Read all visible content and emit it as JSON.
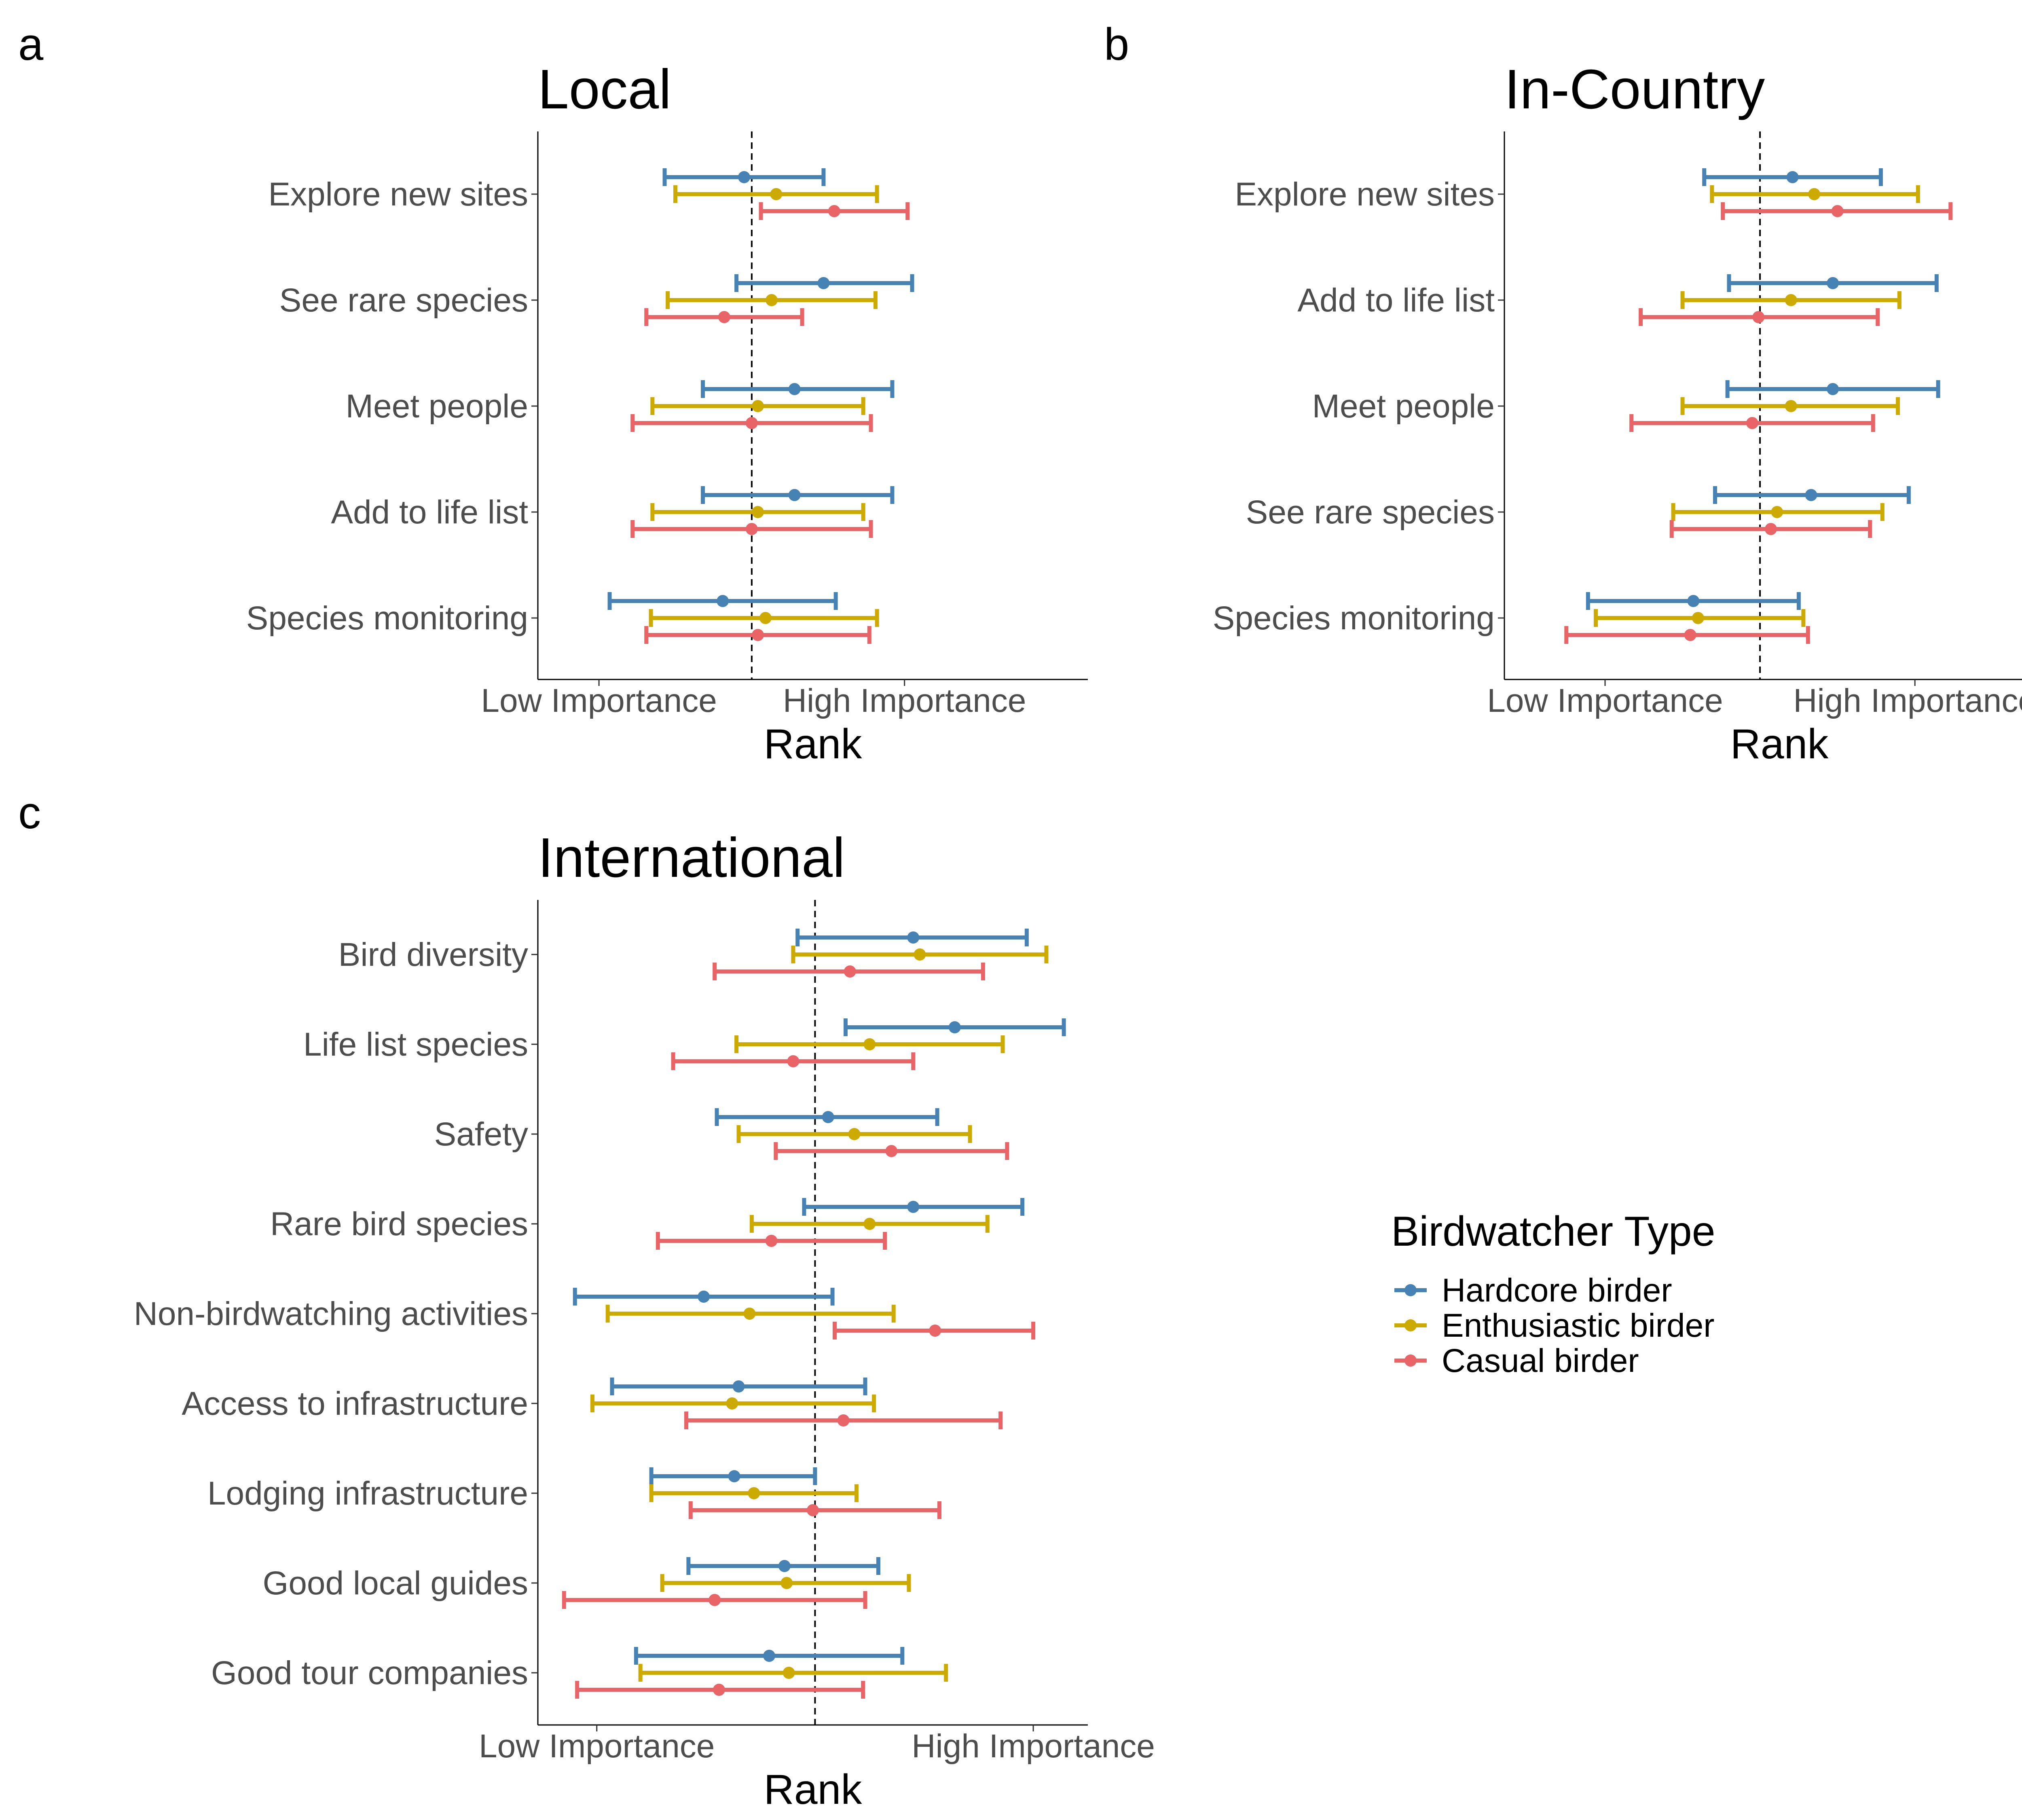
{
  "colors": {
    "hardcore": "#4682B4",
    "enthusiastic": "#CCAA00",
    "casual": "#E86467"
  },
  "legend": {
    "title": "Birdwatcher Type",
    "items": [
      {
        "key": "hardcore",
        "label": "Hardcore birder"
      },
      {
        "key": "enthusiastic",
        "label": "Enthusiastic birder"
      },
      {
        "key": "casual",
        "label": "Casual birder"
      }
    ]
  },
  "chart_data": [
    {
      "type": "errorbar",
      "panel": "a",
      "title": "Local",
      "xlabel": "Rank",
      "xticks": [
        "Low Importance",
        "High Importance"
      ],
      "xtick_values": [
        2,
        4
      ],
      "reference_line": 3,
      "xlim": [
        1.6,
        5.2
      ],
      "categories": [
        "Explore new sites",
        "See rare species",
        "Meet people",
        "Add to life list",
        "Species monitoring"
      ],
      "series": [
        {
          "key": "hardcore",
          "name": "Hardcore birder",
          "mean": [
            2.95,
            3.47,
            3.28,
            3.28,
            2.81
          ],
          "low": [
            2.43,
            2.9,
            2.68,
            2.68,
            2.07
          ],
          "high": [
            3.47,
            4.05,
            3.92,
            3.92,
            3.55
          ]
        },
        {
          "key": "enthusiastic",
          "name": "Enthusiastic birder",
          "mean": [
            3.16,
            3.13,
            3.04,
            3.04,
            3.09
          ],
          "low": [
            2.5,
            2.45,
            2.35,
            2.35,
            2.34
          ],
          "high": [
            3.82,
            3.81,
            3.73,
            3.73,
            3.82
          ]
        },
        {
          "key": "casual",
          "name": "Casual birder",
          "mean": [
            3.54,
            2.82,
            3.0,
            3.0,
            3.04
          ],
          "low": [
            3.06,
            2.31,
            2.22,
            2.22,
            2.31
          ],
          "high": [
            4.02,
            3.33,
            3.78,
            3.78,
            3.77
          ]
        }
      ]
    },
    {
      "type": "errorbar",
      "panel": "b",
      "title": "In-Country",
      "xlabel": "Rank",
      "xticks": [
        "Low Importance",
        "High Importance"
      ],
      "xtick_values": [
        2,
        4
      ],
      "reference_line": 3,
      "xlim": [
        1.35,
        4.9
      ],
      "categories": [
        "Explore new sites",
        "Add to life list",
        "Meet people",
        "See rare species",
        "Species monitoring"
      ],
      "series": [
        {
          "key": "hardcore",
          "name": "Hardcore birder",
          "mean": [
            3.21,
            3.47,
            3.47,
            3.33,
            2.57
          ],
          "low": [
            2.64,
            2.8,
            2.79,
            2.71,
            1.89
          ],
          "high": [
            3.78,
            4.14,
            4.15,
            3.96,
            3.25
          ]
        },
        {
          "key": "enthusiastic",
          "name": "Enthusiastic birder",
          "mean": [
            3.35,
            3.2,
            3.2,
            3.11,
            2.6
          ],
          "low": [
            2.69,
            2.5,
            2.5,
            2.44,
            1.94
          ],
          "high": [
            4.02,
            3.9,
            3.89,
            3.79,
            3.28
          ]
        },
        {
          "key": "casual",
          "name": "Casual birder",
          "mean": [
            3.5,
            2.99,
            2.95,
            3.07,
            2.55
          ],
          "low": [
            2.76,
            2.23,
            2.17,
            2.43,
            1.75
          ],
          "high": [
            4.23,
            3.76,
            3.73,
            3.71,
            3.31
          ]
        }
      ]
    },
    {
      "type": "errorbar",
      "panel": "c",
      "title": "International",
      "xlabel": "Rank",
      "xticks": [
        "Low Importance",
        "High Importance"
      ],
      "xtick_values": [
        2,
        4
      ],
      "reference_line": 3,
      "xlim": [
        1.73,
        4.25
      ],
      "categories": [
        "Bird diversity",
        "Life list species",
        "Safety",
        "Rare bird species",
        "Non-birdwatching activities",
        "Access to infrastructure",
        "Lodging infrastructure",
        "Good local guides",
        "Good tour companies"
      ],
      "series": [
        {
          "key": "hardcore",
          "name": "Hardcore birder",
          "mean": [
            3.45,
            3.64,
            3.06,
            3.45,
            2.49,
            2.65,
            2.63,
            2.86,
            2.79
          ],
          "low": [
            2.92,
            3.14,
            2.55,
            2.95,
            1.9,
            2.07,
            2.25,
            2.42,
            2.18
          ],
          "high": [
            3.97,
            4.14,
            3.56,
            3.95,
            3.08,
            3.23,
            3.0,
            3.29,
            3.4
          ]
        },
        {
          "key": "enthusiastic",
          "name": "Enthusiastic birder",
          "mean": [
            3.48,
            3.25,
            3.18,
            3.25,
            2.7,
            2.62,
            2.72,
            2.87,
            2.88
          ],
          "low": [
            2.9,
            2.64,
            2.65,
            2.71,
            2.05,
            1.98,
            2.25,
            2.3,
            2.2
          ],
          "high": [
            4.06,
            3.86,
            3.71,
            3.79,
            3.36,
            3.27,
            3.19,
            3.43,
            3.6
          ]
        },
        {
          "key": "casual",
          "name": "Casual birder",
          "mean": [
            3.16,
            2.9,
            3.35,
            2.8,
            3.55,
            3.13,
            2.99,
            2.54,
            2.56
          ],
          "low": [
            2.54,
            2.35,
            2.82,
            2.28,
            3.09,
            2.41,
            2.43,
            1.85,
            1.91
          ],
          "high": [
            3.77,
            3.45,
            3.88,
            3.32,
            4.0,
            3.85,
            3.57,
            3.23,
            3.22
          ]
        }
      ]
    }
  ]
}
